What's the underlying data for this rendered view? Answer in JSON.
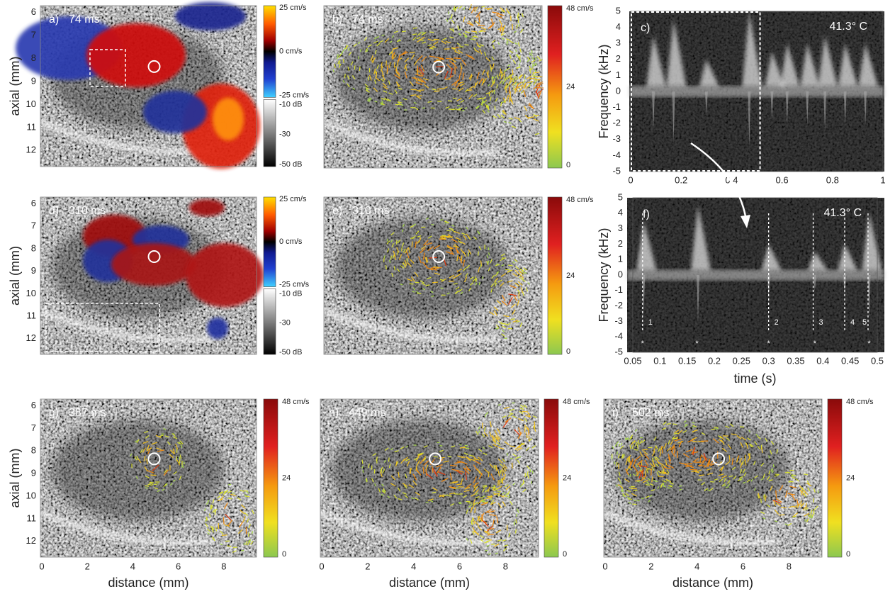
{
  "axial_label": "axial (mm)",
  "distance_label": "distance (mm)",
  "axial_ticks": [
    6,
    7,
    8,
    9,
    10,
    11,
    12
  ],
  "distance_ticks": [
    0,
    2,
    4,
    6,
    8
  ],
  "panels": [
    {
      "label": "a)",
      "time": "74 ms"
    },
    {
      "label": "b)",
      "time": "74 ms"
    },
    {
      "label": "d)",
      "time": "310 ms"
    },
    {
      "label": "e)",
      "time": "310 ms"
    },
    {
      "label": "g)",
      "time": "387 ms"
    },
    {
      "label": "h)",
      "time": "449 ms"
    },
    {
      "label": "i)",
      "time": "502 ms"
    }
  ],
  "doppler_colorbar": {
    "labels": [
      "25 cm/s",
      "0 cm/s",
      "-25 cm/s",
      "-10 dB",
      "-30",
      "-50 dB"
    ]
  },
  "velocity_colorbar": {
    "labels": [
      "48 cm/s",
      24,
      0
    ]
  },
  "spectrograms": [
    {
      "label": "c)",
      "temperature": "41.3° C",
      "y_label": "Frequency (kHz)",
      "yticks": [
        5,
        4,
        3,
        2,
        1,
        0,
        -1,
        -2,
        -3,
        -4,
        -5
      ],
      "xticks": [
        0,
        0.2,
        0.4,
        0.6,
        0.8,
        1
      ]
    },
    {
      "label": "f)",
      "temperature": "41.3° C",
      "y_label": "Frequency (kHz)",
      "x_label": "time (s)",
      "yticks": [
        5,
        4,
        3,
        2,
        1,
        0,
        -1,
        -2,
        -3,
        -4,
        -5
      ],
      "xticks": [
        0.05,
        0.1,
        0.15,
        0.2,
        0.25,
        0.3,
        0.35,
        0.4,
        0.45,
        0.5
      ],
      "event_lines": [
        {
          "label": "1",
          "time": 0.068
        },
        {
          "label": "2",
          "time": 0.3
        },
        {
          "label": "3",
          "time": 0.382
        },
        {
          "label": "4",
          "time": 0.44
        },
        {
          "label": "5",
          "time": 0.483
        }
      ],
      "asterisk": "*",
      "asterisk_times": [
        0.068,
        0.168,
        0.3,
        0.385,
        0.485
      ]
    }
  ]
}
